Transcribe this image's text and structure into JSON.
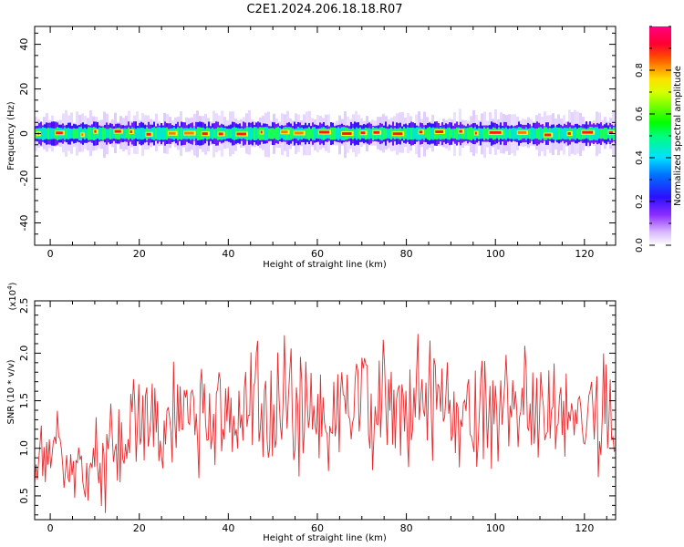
{
  "title": "C2E1.2024.206.18.18.R07",
  "colors": {
    "snr_line": "#e8282b",
    "axis": "#000000",
    "background": "#ffffff"
  },
  "chart_data": [
    {
      "type": "heatmap",
      "xlabel": "Height of straight line (km)",
      "ylabel": "Frequency (Hz)",
      "xlim": [
        -3.5,
        127
      ],
      "ylim": [
        -50,
        48
      ],
      "x_ticks": [
        0,
        20,
        40,
        60,
        80,
        100,
        120
      ],
      "y_ticks": [
        -40,
        -20,
        0,
        20,
        40
      ],
      "colorbar": {
        "label": "Normalized spectral amplitude",
        "range": [
          0,
          1
        ],
        "ticks": [
          0.0,
          0.2,
          0.4,
          0.6,
          0.8
        ],
        "colormap": "rainbow (white-violet-blue-cyan-green-yellow-red-magenta)"
      },
      "band": {
        "center_freq_hz": 0,
        "core_halfwidth_hz": 1.5,
        "outer_halfwidth_hz": 5,
        "peak_amplitude": 0.85
      }
    },
    {
      "type": "line",
      "xlabel": "Height of straight line (km)",
      "ylabel": "SNR (10 * v/v)",
      "y_multiplier_label": "(x10",
      "y_multiplier_exponent": "4",
      "y_multiplier_close": ")",
      "xlim": [
        -3.5,
        127
      ],
      "ylim": [
        0.25,
        2.55
      ],
      "x_ticks": [
        0,
        20,
        40,
        60,
        80,
        100,
        120
      ],
      "y_ticks": [
        0.5,
        1.0,
        1.5,
        2.0,
        2.5
      ],
      "series": [
        {
          "x_step_km": 0.3,
          "x": [
            -3.5,
            -2,
            0,
            1.5,
            3,
            5,
            7,
            8.5,
            10,
            12,
            14,
            16,
            18,
            20,
            22,
            24,
            26,
            28,
            30,
            32,
            34,
            36,
            38,
            40,
            42,
            44,
            46,
            48,
            50,
            52,
            54,
            56,
            58,
            60,
            62,
            64,
            66,
            68,
            70,
            72,
            74,
            76,
            78,
            80,
            82,
            84,
            86,
            88,
            90,
            92,
            94,
            96,
            98,
            100,
            102,
            104,
            106,
            108,
            110,
            112,
            114,
            116,
            118,
            120,
            122,
            124,
            126,
            127
          ],
          "values": [
            0.85,
            0.95,
            0.8,
            1.3,
            0.9,
            0.75,
            0.9,
            0.6,
            0.8,
            0.85,
            0.95,
            1.05,
            1.2,
            1.35,
            1.3,
            1.25,
            1.3,
            1.35,
            1.4,
            1.25,
            1.3,
            1.45,
            1.3,
            1.4,
            1.25,
            1.45,
            1.35,
            1.4,
            1.3,
            1.5,
            1.45,
            1.35,
            1.5,
            1.4,
            1.45,
            1.35,
            1.5,
            1.4,
            1.55,
            1.35,
            1.45,
            1.4,
            1.5,
            1.35,
            1.45,
            1.4,
            1.5,
            1.4,
            1.45,
            1.4,
            1.5,
            1.4,
            1.45,
            1.4,
            1.5,
            1.35,
            1.4,
            1.45,
            1.35,
            1.4,
            1.3,
            1.35,
            1.3,
            1.35,
            1.4,
            1.3,
            1.45,
            1.35
          ]
        }
      ]
    }
  ]
}
